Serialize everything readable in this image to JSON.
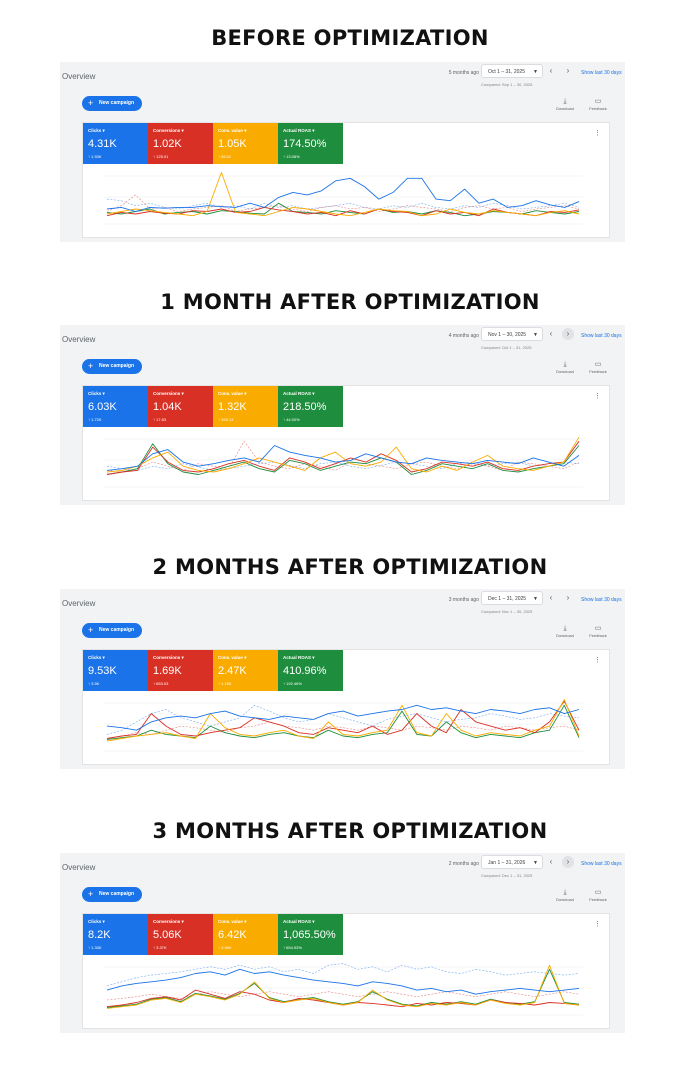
{
  "colors": {
    "clicks": "#1a73e8",
    "conversions": "#d93025",
    "conv_value": "#f9ab00",
    "roas": "#1e8e3e"
  },
  "panels": [
    {
      "heading": "BEFORE OPTIMIZATION",
      "overview": "Overview",
      "ago": "5 months ago",
      "date": "Oct 1 – 31, 2025",
      "compared": "Compared: Sep 1 – 30, 2025",
      "show_last": "Show last 30 days",
      "new_campaign": "New campaign",
      "download": "Download",
      "feedback": "Feedback",
      "next_hover": false,
      "metrics": [
        {
          "label": "Clicks",
          "value": "4.31K",
          "delta": "1.93K"
        },
        {
          "label": "Conversions",
          "value": "1.02K",
          "delta": "125.01"
        },
        {
          "label": "Conv. value",
          "value": "1.05K",
          "delta": "65.01"
        },
        {
          "label": "Actual ROAS",
          "value": "174.50%",
          "delta": "13.08%"
        }
      ],
      "series": {
        "clicks": [
          18,
          20,
          15,
          20,
          19,
          20,
          20,
          22,
          21,
          20,
          25,
          20,
          32,
          38,
          35,
          40,
          52,
          55,
          45,
          30,
          38,
          55,
          55,
          30,
          28,
          42,
          25,
          30,
          20,
          22,
          28,
          23,
          20,
          27
        ],
        "conversions": [
          10,
          14,
          12,
          15,
          13,
          12,
          16,
          15,
          18,
          14,
          15,
          20,
          17,
          15,
          12,
          14,
          10,
          16,
          12,
          18,
          15,
          14,
          10,
          16,
          12,
          14,
          10,
          18,
          14,
          12,
          10,
          15,
          14,
          17
        ],
        "conv_value": [
          12,
          15,
          18,
          16,
          14,
          12,
          10,
          15,
          62,
          14,
          12,
          10,
          15,
          20,
          18,
          15,
          12,
          10,
          14,
          18,
          16,
          15,
          10,
          12,
          18,
          14,
          12,
          16,
          14,
          12,
          10,
          14,
          16,
          12
        ],
        "roas": [
          14,
          12,
          15,
          18,
          12,
          14,
          15,
          12,
          16,
          15,
          13,
          12,
          25,
          15,
          14,
          12,
          16,
          14,
          12,
          18,
          14,
          15,
          12,
          16,
          14,
          10,
          12,
          15,
          14,
          12,
          16,
          14,
          12,
          15
        ],
        "clicks_prev": [
          30,
          28,
          22,
          25,
          20,
          18,
          22,
          25,
          20,
          22,
          18,
          25,
          20,
          22,
          18,
          20,
          22,
          25,
          20,
          18,
          22,
          20,
          25,
          20,
          18,
          22,
          20,
          25,
          22,
          18,
          20,
          22,
          25,
          20
        ],
        "conv_prev": [
          15,
          22,
          35,
          18,
          20,
          15,
          18,
          20,
          22,
          15,
          18,
          20,
          22,
          18,
          15,
          20,
          22,
          18,
          20,
          15,
          18,
          22,
          20,
          18,
          15,
          20,
          22,
          18,
          20,
          15,
          18,
          20,
          22,
          18
        ]
      }
    },
    {
      "heading": "1 MONTH AFTER OPTIMIZATION",
      "overview": "Overview",
      "ago": "4 months ago",
      "date": "Nov 1 – 30, 2025",
      "compared": "Compared: Oct 1 – 31, 2025",
      "show_last": "Show last 30 days",
      "new_campaign": "New campaign",
      "download": "Download",
      "feedback": "Feedback",
      "next_hover": true,
      "metrics": [
        {
          "label": "Clicks",
          "value": "6.03K",
          "delta": "1.72K"
        },
        {
          "label": "Conversions",
          "value": "1.04K",
          "delta": "17.83"
        },
        {
          "label": "Conv. value",
          "value": "1.32K",
          "delta": "269.13"
        },
        {
          "label": "Actual ROAS",
          "value": "218.50%",
          "delta": "44.00%"
        }
      ],
      "series": {
        "clicks": [
          20,
          22,
          25,
          40,
          45,
          30,
          25,
          28,
          32,
          35,
          30,
          50,
          42,
          38,
          35,
          30,
          32,
          40,
          35,
          30,
          28,
          35,
          32,
          30,
          28,
          32,
          30,
          28,
          35,
          30,
          25,
          38
        ],
        "conversions": [
          15,
          18,
          20,
          48,
          30,
          20,
          18,
          22,
          28,
          32,
          25,
          20,
          35,
          30,
          22,
          28,
          35,
          30,
          40,
          32,
          18,
          22,
          30,
          28,
          25,
          30,
          22,
          20,
          25,
          28,
          30,
          55
        ],
        "conv_value": [
          18,
          20,
          25,
          35,
          42,
          25,
          20,
          18,
          22,
          28,
          35,
          30,
          25,
          20,
          35,
          42,
          28,
          25,
          30,
          48,
          22,
          18,
          25,
          20,
          30,
          38,
          25,
          22,
          20,
          25,
          30,
          60
        ],
        "roas": [
          15,
          18,
          22,
          52,
          28,
          18,
          15,
          20,
          25,
          30,
          22,
          18,
          32,
          28,
          20,
          25,
          30,
          28,
          35,
          30,
          15,
          20,
          28,
          25,
          22,
          28,
          20,
          18,
          22,
          25,
          28,
          50
        ],
        "clicks_prev": [
          25,
          22,
          20,
          25,
          22,
          28,
          24,
          20,
          22,
          25,
          28,
          30,
          26,
          22,
          28,
          30,
          25,
          22,
          26,
          30,
          28,
          25,
          22,
          28,
          30,
          25,
          28,
          30,
          25,
          28,
          30,
          28
        ],
        "conv_prev": [
          20,
          18,
          22,
          30,
          25,
          20,
          28,
          25,
          22,
          55,
          30,
          25,
          22,
          28,
          25,
          20,
          30,
          28,
          25,
          22,
          28,
          30,
          25,
          22,
          28,
          25,
          20,
          30,
          28,
          25,
          22,
          30
        ]
      }
    },
    {
      "heading": "2 MONTHS AFTER OPTIMIZATION",
      "overview": "Overview",
      "ago": "3 months ago",
      "date": "Dec 1 – 31, 2025",
      "compared": "Compared: Nov 1 – 30, 2025",
      "show_last": "Show last 30 days",
      "new_campaign": "New campaign",
      "download": "Download",
      "feedback": "Feedback",
      "next_hover": false,
      "metrics": [
        {
          "label": "Clicks",
          "value": "9.53K",
          "delta": "3.5K"
        },
        {
          "label": "Conversions",
          "value": "1.69K",
          "delta": "653.03"
        },
        {
          "label": "Conv. value",
          "value": "2.47K",
          "delta": "1.15K"
        },
        {
          "label": "Actual ROAS",
          "value": "410.96%",
          "delta": "192.46%"
        }
      ],
      "series": {
        "clicks": [
          30,
          28,
          25,
          35,
          40,
          42,
          40,
          45,
          48,
          42,
          40,
          38,
          42,
          40,
          38,
          45,
          48,
          42,
          45,
          48,
          50,
          55,
          50,
          52,
          48,
          45,
          50,
          48,
          45,
          50,
          52,
          45,
          50
        ],
        "conversions": [
          15,
          18,
          20,
          45,
          30,
          20,
          18,
          22,
          25,
          28,
          40,
          35,
          30,
          22,
          20,
          28,
          25,
          22,
          30,
          20,
          25,
          45,
          30,
          22,
          50,
          35,
          30,
          25,
          28,
          22,
          35,
          60,
          25
        ],
        "conv_value": [
          12,
          15,
          18,
          20,
          22,
          18,
          15,
          45,
          28,
          20,
          18,
          22,
          25,
          18,
          15,
          35,
          20,
          18,
          22,
          25,
          55,
          22,
          18,
          45,
          25,
          18,
          22,
          20,
          18,
          25,
          30,
          62,
          18
        ],
        "roas": [
          14,
          16,
          18,
          25,
          20,
          18,
          16,
          30,
          22,
          18,
          16,
          20,
          22,
          18,
          16,
          25,
          18,
          16,
          20,
          22,
          48,
          20,
          18,
          35,
          22,
          16,
          20,
          18,
          16,
          22,
          25,
          55,
          16
        ],
        "clicks_prev": [
          20,
          25,
          35,
          45,
          50,
          40,
          35,
          30,
          35,
          40,
          55,
          48,
          40,
          35,
          38,
          45,
          40,
          35,
          30,
          38,
          42,
          45,
          40,
          35,
          38,
          40,
          45,
          42,
          38,
          40,
          45,
          42,
          40
        ],
        "conv_prev": [
          15,
          18,
          22,
          20,
          25,
          30,
          28,
          25,
          22,
          28,
          30,
          35,
          30,
          28,
          25,
          30,
          28,
          25,
          30,
          28,
          25,
          30,
          28,
          25,
          30,
          28,
          25,
          30,
          28,
          25,
          28,
          30,
          25
        ]
      }
    },
    {
      "heading": "3 MONTHS AFTER OPTIMIZATION",
      "overview": "Overview",
      "ago": "2 months ago",
      "date": "Jan 1 – 31, 2026",
      "compared": "Compared: Dec 1 – 31, 2025",
      "show_last": "Show last 30 days",
      "new_campaign": "New campaign",
      "download": "Download",
      "feedback": "Feedback",
      "next_hover": true,
      "metrics": [
        {
          "label": "Clicks",
          "value": "8.2K",
          "delta": "1.33K"
        },
        {
          "label": "Conversions",
          "value": "5.06K",
          "delta": "3.37K"
        },
        {
          "label": "Conv. value",
          "value": "6.42K",
          "delta": "3.96K"
        },
        {
          "label": "Actual ROAS",
          "value": "1,065.50%",
          "delta": "654.93%"
        }
      ],
      "series": {
        "clicks": [
          30,
          35,
          38,
          40,
          42,
          45,
          50,
          52,
          48,
          55,
          50,
          52,
          48,
          45,
          42,
          40,
          38,
          35,
          40,
          38,
          35,
          30,
          32,
          28,
          30,
          25,
          28,
          30,
          32,
          30,
          28,
          30,
          32
        ],
        "conversions": [
          10,
          12,
          15,
          20,
          22,
          18,
          30,
          25,
          20,
          28,
          25,
          18,
          15,
          20,
          18,
          15,
          12,
          15,
          14,
          12,
          10,
          14,
          12,
          15,
          14,
          12,
          18,
          15,
          14,
          12,
          15,
          14,
          12
        ],
        "conv_value": [
          8,
          10,
          12,
          18,
          20,
          15,
          25,
          22,
          18,
          25,
          40,
          20,
          15,
          18,
          20,
          15,
          12,
          15,
          30,
          18,
          12,
          10,
          14,
          12,
          15,
          12,
          18,
          14,
          12,
          15,
          60,
          14,
          12
        ],
        "roas": [
          9,
          11,
          13,
          19,
          21,
          16,
          26,
          23,
          19,
          26,
          38,
          21,
          16,
          19,
          21,
          16,
          13,
          16,
          28,
          19,
          13,
          11,
          15,
          13,
          16,
          13,
          19,
          15,
          13,
          16,
          55,
          15,
          13
        ],
        "clicks_prev": [
          35,
          40,
          45,
          48,
          50,
          52,
          55,
          58,
          55,
          60,
          55,
          58,
          52,
          55,
          50,
          60,
          62,
          55,
          58,
          52,
          60,
          55,
          58,
          52,
          50,
          55,
          52,
          48,
          50,
          52,
          50,
          48,
          50
        ],
        "conv_prev": [
          18,
          20,
          22,
          25,
          22,
          20,
          25,
          28,
          25,
          22,
          25,
          28,
          25,
          22,
          25,
          28,
          25,
          22,
          25,
          28,
          25,
          22,
          25,
          28,
          25,
          22,
          25,
          28,
          25,
          22,
          25,
          28,
          25
        ]
      }
    }
  ]
}
